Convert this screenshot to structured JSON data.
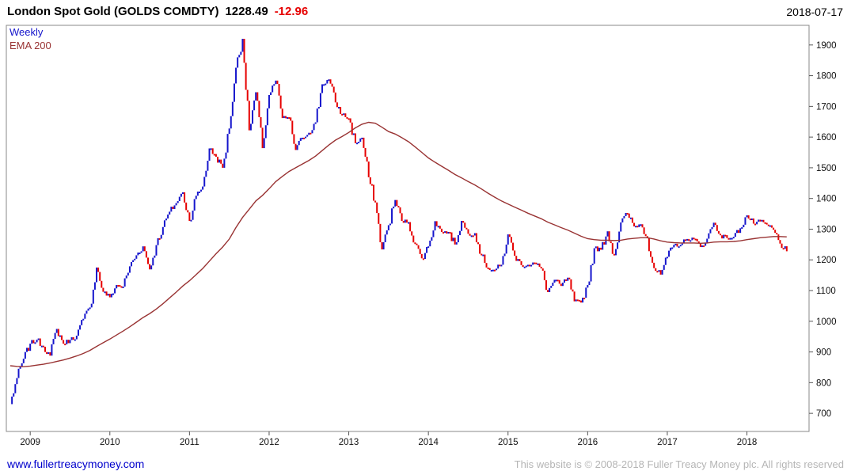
{
  "header": {
    "title": "London Spot Gold (GOLDS COMDTY)",
    "price": "1228.49",
    "change": "-12.96",
    "date": "2018-07-17"
  },
  "legend": {
    "series_label": "Weekly",
    "ema_label": "EMA 200"
  },
  "footer": {
    "site_link": "www.fullertreacymoney.com",
    "copyright": "This website is © 2008-2018 Fuller Treacy Money plc. All rights reserved"
  },
  "colors": {
    "up": "#1515cc",
    "down": "#e60000",
    "ema": "#993333",
    "change": "#e60000",
    "link": "#0000cc",
    "copyright_text": "#b5b5b5",
    "frame": "#8a8a8a"
  },
  "chart_data": {
    "type": "line",
    "style": "weekly-price-bars-with-ema",
    "title": "London Spot Gold (GOLDS COMDTY)",
    "last_price": 1228.49,
    "last_change": -12.96,
    "as_of": "2018-07-17",
    "timeframe": "Weekly",
    "x_unit": "year-month",
    "x": [
      "2008-10",
      "2008-11",
      "2008-12",
      "2009-01",
      "2009-02",
      "2009-03",
      "2009-04",
      "2009-05",
      "2009-06",
      "2009-07",
      "2009-08",
      "2009-09",
      "2009-10",
      "2009-11",
      "2009-12",
      "2010-01",
      "2010-02",
      "2010-03",
      "2010-04",
      "2010-05",
      "2010-06",
      "2010-07",
      "2010-08",
      "2010-09",
      "2010-10",
      "2010-11",
      "2010-12",
      "2011-01",
      "2011-02",
      "2011-03",
      "2011-04",
      "2011-05",
      "2011-06",
      "2011-07",
      "2011-08",
      "2011-09",
      "2011-10",
      "2011-11",
      "2011-12",
      "2012-01",
      "2012-02",
      "2012-03",
      "2012-04",
      "2012-05",
      "2012-06",
      "2012-07",
      "2012-08",
      "2012-09",
      "2012-10",
      "2012-11",
      "2012-12",
      "2013-01",
      "2013-02",
      "2013-03",
      "2013-04",
      "2013-05",
      "2013-06",
      "2013-07",
      "2013-08",
      "2013-09",
      "2013-10",
      "2013-11",
      "2013-12",
      "2014-01",
      "2014-02",
      "2014-03",
      "2014-04",
      "2014-05",
      "2014-06",
      "2014-07",
      "2014-08",
      "2014-09",
      "2014-10",
      "2014-11",
      "2014-12",
      "2015-01",
      "2015-02",
      "2015-03",
      "2015-04",
      "2015-05",
      "2015-06",
      "2015-07",
      "2015-08",
      "2015-09",
      "2015-10",
      "2015-11",
      "2015-12",
      "2016-01",
      "2016-02",
      "2016-03",
      "2016-04",
      "2016-05",
      "2016-06",
      "2016-07",
      "2016-08",
      "2016-09",
      "2016-10",
      "2016-11",
      "2016-12",
      "2017-01",
      "2017-02",
      "2017-03",
      "2017-04",
      "2017-05",
      "2017-06",
      "2017-07",
      "2017-08",
      "2017-09",
      "2017-10",
      "2017-11",
      "2017-12",
      "2018-01",
      "2018-02",
      "2018-03",
      "2018-04",
      "2018-05",
      "2018-06",
      "2018-07"
    ],
    "series": [
      {
        "name": "Weekly price",
        "values": [
          730,
          815,
          878,
          927,
          940,
          917,
          888,
          975,
          927,
          939,
          953,
          1008,
          1045,
          1175,
          1096,
          1078,
          1118,
          1113,
          1179,
          1215,
          1244,
          1169,
          1248,
          1307,
          1357,
          1385,
          1420,
          1327,
          1409,
          1439,
          1563,
          1536,
          1500,
          1628,
          1826,
          1920,
          1622,
          1746,
          1564,
          1737,
          1784,
          1662,
          1664,
          1558,
          1598,
          1614,
          1648,
          1772,
          1788,
          1713,
          1675,
          1661,
          1580,
          1598,
          1469,
          1387,
          1234,
          1313,
          1395,
          1327,
          1323,
          1253,
          1205,
          1244,
          1326,
          1291,
          1291,
          1250,
          1327,
          1285,
          1287,
          1216,
          1173,
          1167,
          1184,
          1283,
          1213,
          1183,
          1184,
          1191,
          1172,
          1095,
          1135,
          1115,
          1142,
          1065,
          1061,
          1118,
          1238,
          1233,
          1293,
          1215,
          1322,
          1351,
          1309,
          1316,
          1272,
          1173,
          1152,
          1210,
          1249,
          1249,
          1268,
          1269,
          1242,
          1269,
          1321,
          1280,
          1271,
          1275,
          1303,
          1345,
          1318,
          1325,
          1315,
          1298,
          1253,
          1228
        ]
      },
      {
        "name": "EMA 200",
        "values": [
          855,
          853,
          852,
          854,
          857,
          860,
          864,
          869,
          874,
          880,
          887,
          895,
          905,
          918,
          930,
          942,
          955,
          968,
          982,
          997,
          1012,
          1025,
          1040,
          1057,
          1076,
          1095,
          1115,
          1132,
          1152,
          1172,
          1196,
          1220,
          1242,
          1268,
          1305,
          1338,
          1365,
          1392,
          1410,
          1432,
          1455,
          1472,
          1488,
          1500,
          1512,
          1524,
          1538,
          1556,
          1574,
          1590,
          1602,
          1615,
          1630,
          1642,
          1648,
          1645,
          1632,
          1618,
          1610,
          1598,
          1585,
          1568,
          1550,
          1532,
          1518,
          1505,
          1492,
          1478,
          1467,
          1455,
          1444,
          1431,
          1417,
          1404,
          1392,
          1382,
          1372,
          1362,
          1352,
          1343,
          1334,
          1323,
          1314,
          1305,
          1297,
          1287,
          1277,
          1269,
          1266,
          1264,
          1264,
          1263,
          1264,
          1268,
          1270,
          1272,
          1272,
          1268,
          1262,
          1258,
          1256,
          1255,
          1255,
          1255,
          1254,
          1255,
          1258,
          1259,
          1259,
          1260,
          1262,
          1266,
          1269,
          1272,
          1274,
          1276,
          1276,
          1275
        ]
      }
    ],
    "ylim": [
      641,
      1964
    ],
    "y_ticks": [
      700,
      800,
      900,
      1000,
      1100,
      1200,
      1300,
      1400,
      1500,
      1600,
      1700,
      1800,
      1900
    ],
    "x_tick_labels": [
      "2009",
      "2010",
      "2011",
      "2012",
      "2013",
      "2014",
      "2015",
      "2016",
      "2017",
      "2018"
    ],
    "xlabel": "",
    "ylabel": "",
    "grid": false,
    "legend_position": "top-left",
    "y_axis_side": "right"
  }
}
